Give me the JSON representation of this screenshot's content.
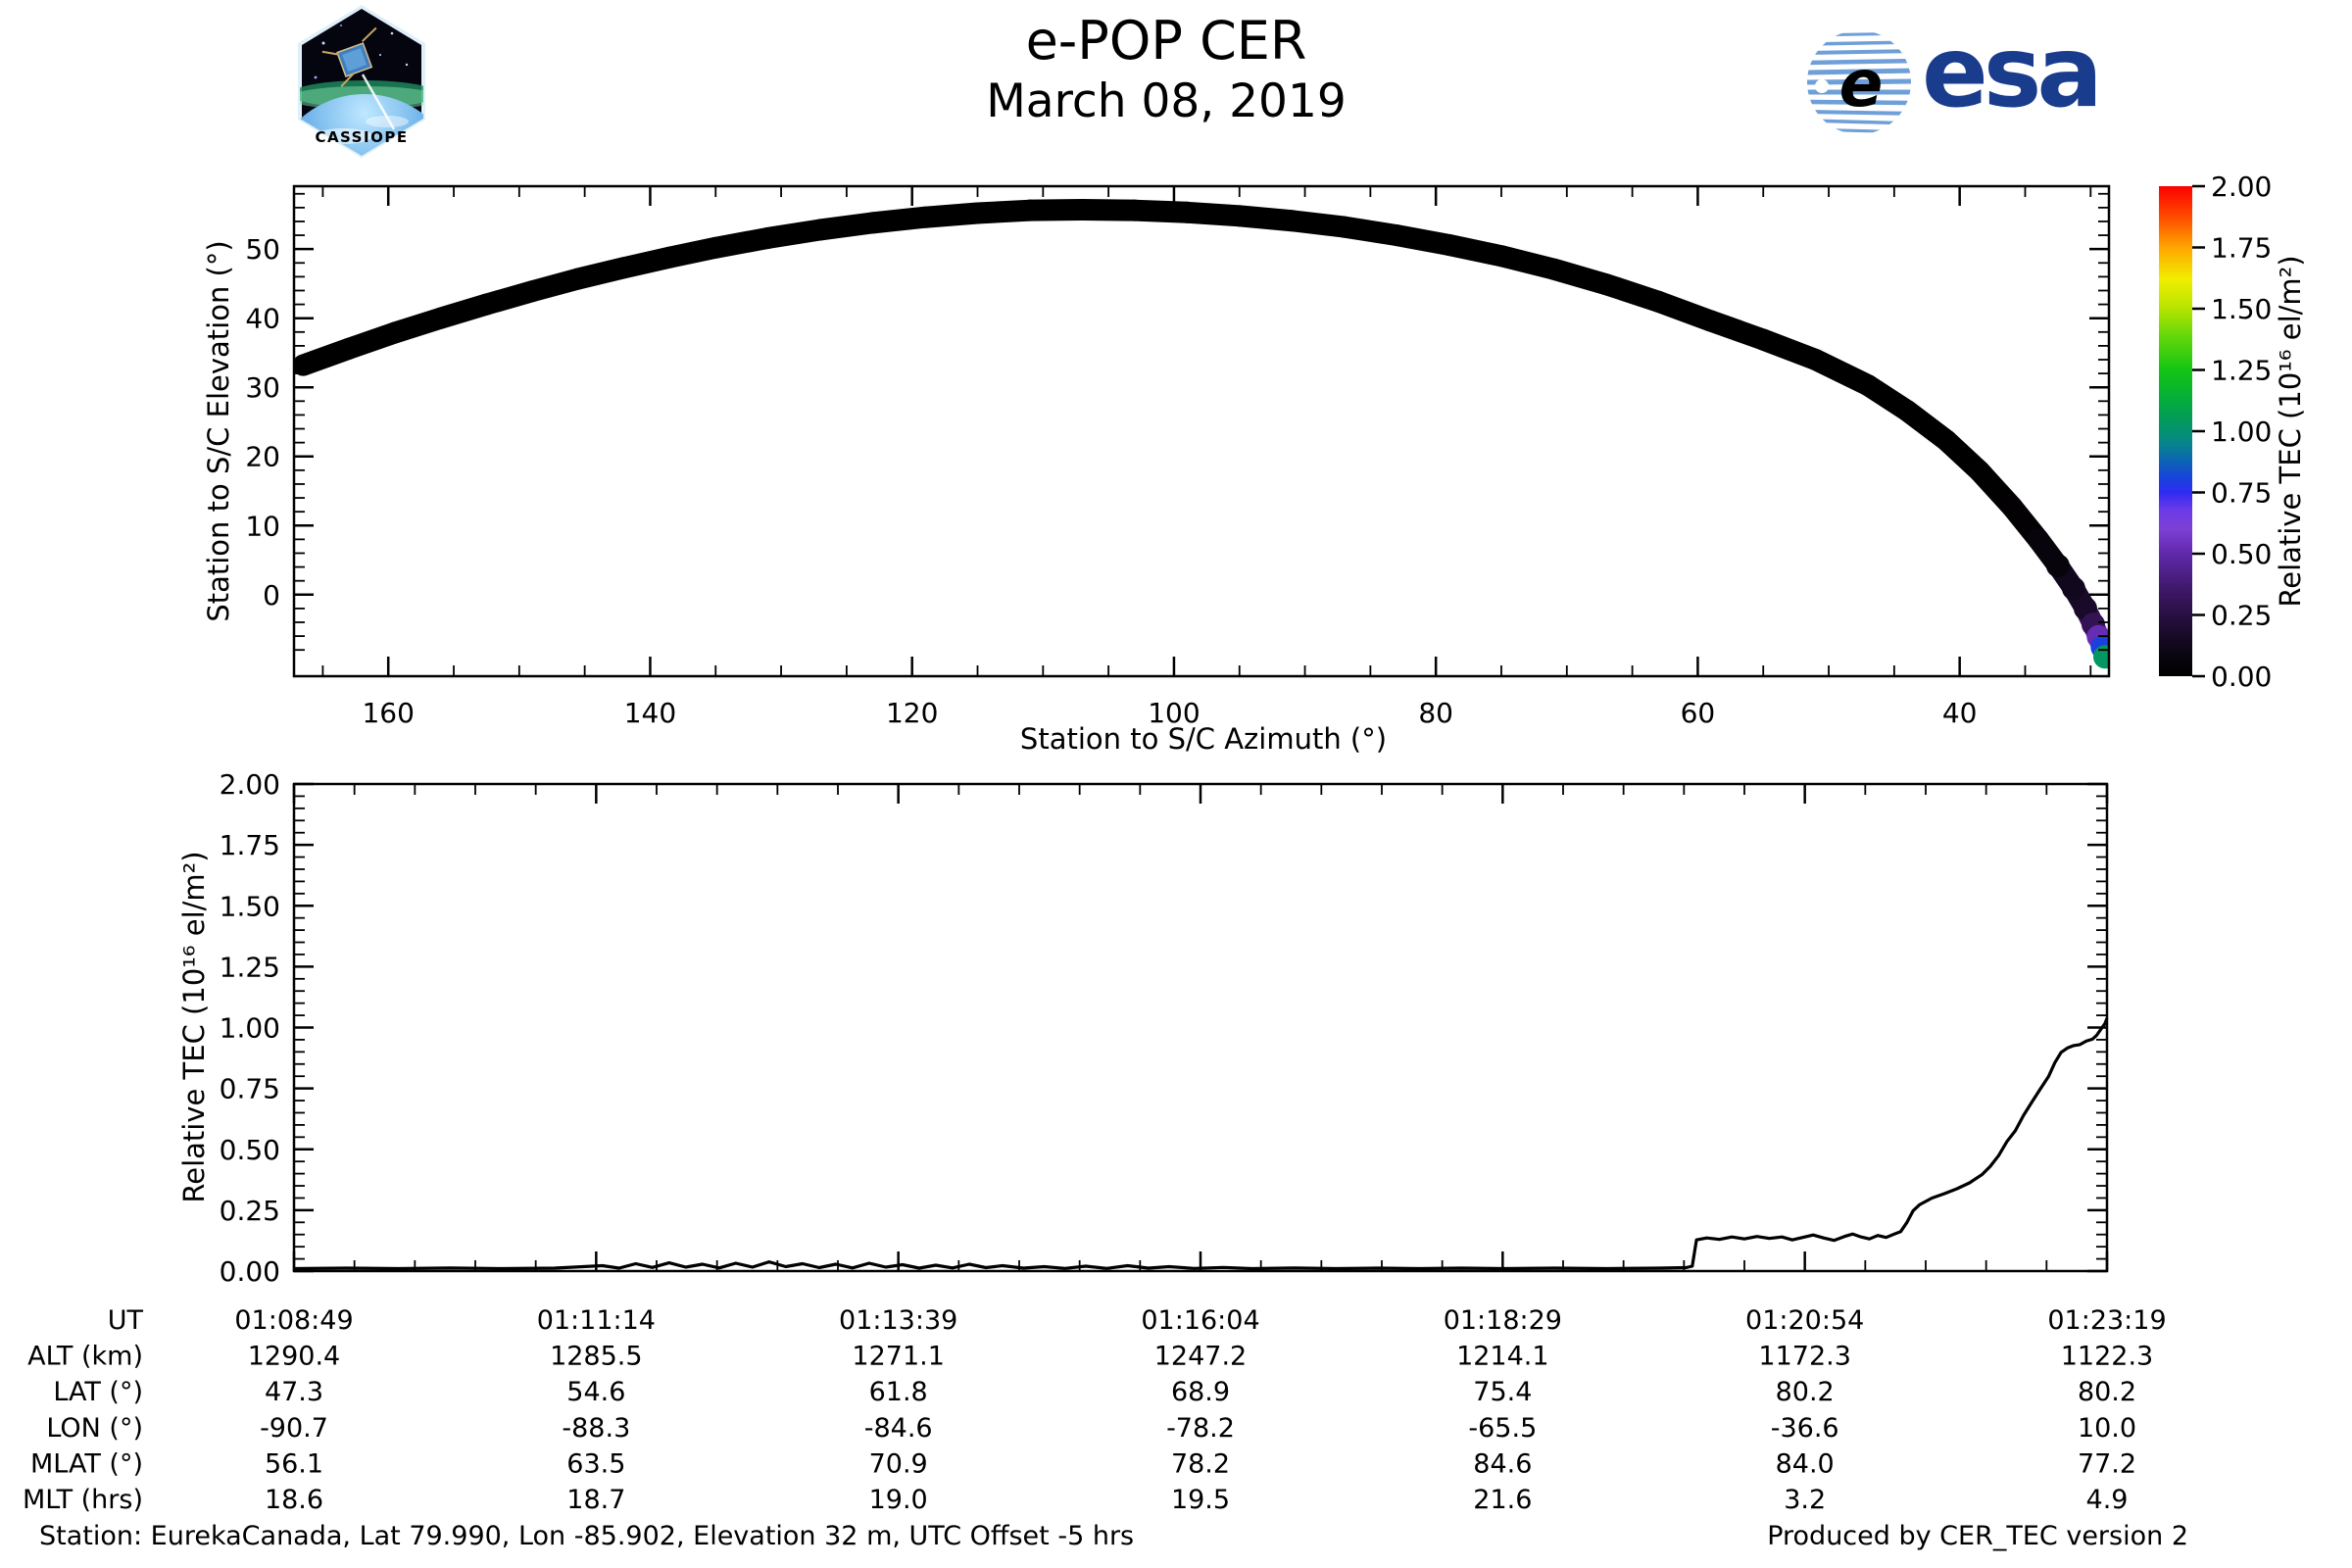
{
  "header": {
    "title": "e-POP CER",
    "subtitle": "March 08, 2019"
  },
  "logos": {
    "cassiope_label": "CASSIOPE",
    "esa_label": "esa"
  },
  "footer": {
    "left": "Station: EurekaCanada, Lat 79.990, Lon -85.902, Elevation 32 m, UTC Offset -5 hrs",
    "right": "Produced by CER_TEC version 2"
  },
  "colorbar": {
    "label": "Relative TEC (10¹⁶ el/m²)",
    "tick_values": [
      0,
      0.25,
      0.5,
      0.75,
      1.0,
      1.25,
      1.5,
      1.75,
      2.0
    ],
    "tick_labels": [
      "0.00",
      "0.25",
      "0.50",
      "0.75",
      "1.00",
      "1.25",
      "1.50",
      "1.75",
      "2.00"
    ],
    "lim": [
      0,
      2
    ],
    "colormap": [
      [
        0.0,
        "#000000"
      ],
      [
        0.1,
        "#0d0614"
      ],
      [
        0.2,
        "#1f0c33"
      ],
      [
        0.3,
        "#331353"
      ],
      [
        0.4,
        "#491d7e"
      ],
      [
        0.5,
        "#6029ab"
      ],
      [
        0.6,
        "#7e3fd4"
      ],
      [
        0.68,
        "#6b3ae8"
      ],
      [
        0.75,
        "#2f2bf2"
      ],
      [
        0.82,
        "#1448d6"
      ],
      [
        0.9,
        "#0a6fa8"
      ],
      [
        0.97,
        "#068b80"
      ],
      [
        1.05,
        "#029b58"
      ],
      [
        1.15,
        "#06b233"
      ],
      [
        1.25,
        "#14c514"
      ],
      [
        1.38,
        "#5ed60a"
      ],
      [
        1.5,
        "#b5e400"
      ],
      [
        1.62,
        "#f0ee00"
      ],
      [
        1.75,
        "#ffa600"
      ],
      [
        1.87,
        "#ff4e00"
      ],
      [
        2.0,
        "#fb0000"
      ]
    ]
  },
  "chart_data": [
    {
      "id": "elevation-vs-azimuth",
      "type": "scatter",
      "xlabel": "Station to S/C Azimuth (°)",
      "ylabel": "Station to S/C Elevation (°)",
      "xlim": [
        167.2,
        28.6
      ],
      "x_reversed": true,
      "ylim": [
        -11.8,
        59.1
      ],
      "xticks": [
        160,
        140,
        120,
        100,
        80,
        60,
        40
      ],
      "xtick_labels": [
        "160",
        "140",
        "120",
        "100",
        "80",
        "60",
        "40"
      ],
      "xminor_step": 5,
      "yticks": [
        0,
        10,
        20,
        30,
        40,
        50
      ],
      "ytick_labels": [
        "0",
        "10",
        "20",
        "30",
        "40",
        "50"
      ],
      "yminor_step": 2,
      "color_by": "relative_tec",
      "points": [
        [
          166.5,
          33.2,
          0
        ],
        [
          163,
          35.6,
          0
        ],
        [
          159.5,
          37.9,
          0
        ],
        [
          156,
          40.0,
          0
        ],
        [
          152.5,
          42.0,
          0
        ],
        [
          149,
          43.9,
          0
        ],
        [
          145.5,
          45.7,
          0
        ],
        [
          142,
          47.3,
          0
        ],
        [
          138.5,
          48.8,
          0
        ],
        [
          135,
          50.2,
          0
        ],
        [
          131,
          51.6,
          0
        ],
        [
          127,
          52.8,
          0
        ],
        [
          123,
          53.8,
          0
        ],
        [
          119,
          54.6,
          0
        ],
        [
          115,
          55.2,
          0
        ],
        [
          111,
          55.6,
          0
        ],
        [
          107,
          55.7,
          0
        ],
        [
          103,
          55.6,
          0
        ],
        [
          99,
          55.3,
          0
        ],
        [
          95,
          54.8,
          0
        ],
        [
          91,
          54.1,
          0
        ],
        [
          87,
          53.2,
          0
        ],
        [
          83,
          52.0,
          0
        ],
        [
          79,
          50.6,
          0
        ],
        [
          75,
          49.0,
          0
        ],
        [
          71,
          47.1,
          0
        ],
        [
          67,
          44.9,
          0
        ],
        [
          63,
          42.4,
          0
        ],
        [
          59,
          39.6,
          0
        ],
        [
          55,
          36.9,
          0
        ],
        [
          51,
          34.0,
          0
        ],
        [
          47,
          30.3,
          0
        ],
        [
          44,
          26.6,
          0
        ],
        [
          41,
          22.3,
          0
        ],
        [
          38.5,
          17.9,
          0
        ],
        [
          36,
          12.7,
          0.01
        ],
        [
          34,
          8.0,
          0.02
        ],
        [
          32.5,
          4.2,
          0.06
        ],
        [
          31.3,
          0.9,
          0.13
        ],
        [
          30.4,
          -2.0,
          0.17
        ],
        [
          29.8,
          -4.3,
          0.3
        ],
        [
          29.4,
          -6.1,
          0.52
        ],
        [
          29.1,
          -7.6,
          0.8
        ],
        [
          28.9,
          -9.0,
          1.03
        ]
      ]
    },
    {
      "id": "tec-vs-time",
      "type": "line",
      "ylabel": "Relative TEC (10¹⁶ el/m²)",
      "ylim": [
        0,
        2
      ],
      "yticks": [
        0,
        0.25,
        0.5,
        0.75,
        1.0,
        1.25,
        1.5,
        1.75,
        2.0
      ],
      "ytick_labels": [
        "0.00",
        "0.25",
        "0.50",
        "0.75",
        "1.00",
        "1.25",
        "1.50",
        "1.75",
        "2.00"
      ],
      "yminor_step": 0.05,
      "t_total": 870,
      "t_major_step": 145,
      "t_minor_step": 29,
      "x_axis_table": {
        "row_labels": [
          "UT",
          "ALT (km)",
          "LAT (°)",
          "LON (°)",
          "MLAT (°)",
          "MLT (hrs)"
        ],
        "columns": [
          {
            "t": 0,
            "values": [
              "01:08:49",
              "1290.4",
              "47.3",
              "-90.7",
              "56.1",
              "18.6"
            ]
          },
          {
            "t": 145,
            "values": [
              "01:11:14",
              "1285.5",
              "54.6",
              "-88.3",
              "63.5",
              "18.7"
            ]
          },
          {
            "t": 290,
            "values": [
              "01:13:39",
              "1271.1",
              "61.8",
              "-84.6",
              "70.9",
              "19.0"
            ]
          },
          {
            "t": 435,
            "values": [
              "01:16:04",
              "1247.2",
              "68.9",
              "-78.2",
              "78.2",
              "19.5"
            ]
          },
          {
            "t": 580,
            "values": [
              "01:18:29",
              "1214.1",
              "75.4",
              "-65.5",
              "84.6",
              "21.6"
            ]
          },
          {
            "t": 725,
            "values": [
              "01:20:54",
              "1172.3",
              "80.2",
              "-36.6",
              "84.0",
              "3.2"
            ]
          },
          {
            "t": 870,
            "values": [
              "01:23:19",
              "1122.3",
              "80.2",
              "10.0",
              "77.2",
              "4.9"
            ]
          }
        ]
      },
      "series": [
        [
          0,
          0.01
        ],
        [
          25,
          0.012
        ],
        [
          50,
          0.01
        ],
        [
          75,
          0.013
        ],
        [
          100,
          0.01
        ],
        [
          125,
          0.012
        ],
        [
          148,
          0.022
        ],
        [
          156,
          0.012
        ],
        [
          164,
          0.03
        ],
        [
          172,
          0.015
        ],
        [
          180,
          0.034
        ],
        [
          188,
          0.016
        ],
        [
          196,
          0.028
        ],
        [
          204,
          0.013
        ],
        [
          212,
          0.032
        ],
        [
          220,
          0.016
        ],
        [
          228,
          0.038
        ],
        [
          236,
          0.018
        ],
        [
          244,
          0.03
        ],
        [
          252,
          0.014
        ],
        [
          260,
          0.028
        ],
        [
          268,
          0.013
        ],
        [
          276,
          0.032
        ],
        [
          284,
          0.016
        ],
        [
          292,
          0.026
        ],
        [
          300,
          0.012
        ],
        [
          308,
          0.024
        ],
        [
          316,
          0.013
        ],
        [
          324,
          0.028
        ],
        [
          332,
          0.014
        ],
        [
          340,
          0.022
        ],
        [
          350,
          0.012
        ],
        [
          360,
          0.018
        ],
        [
          370,
          0.011
        ],
        [
          380,
          0.02
        ],
        [
          390,
          0.011
        ],
        [
          400,
          0.022
        ],
        [
          410,
          0.012
        ],
        [
          420,
          0.018
        ],
        [
          432,
          0.011
        ],
        [
          446,
          0.015
        ],
        [
          460,
          0.01
        ],
        [
          480,
          0.013
        ],
        [
          500,
          0.01
        ],
        [
          520,
          0.012
        ],
        [
          540,
          0.01
        ],
        [
          560,
          0.012
        ],
        [
          580,
          0.01
        ],
        [
          605,
          0.012
        ],
        [
          630,
          0.01
        ],
        [
          655,
          0.012
        ],
        [
          668,
          0.014
        ],
        [
          671,
          0.02
        ],
        [
          673,
          0.128
        ],
        [
          678,
          0.136
        ],
        [
          684,
          0.13
        ],
        [
          690,
          0.14
        ],
        [
          696,
          0.132
        ],
        [
          702,
          0.142
        ],
        [
          708,
          0.134
        ],
        [
          714,
          0.14
        ],
        [
          719,
          0.128
        ],
        [
          724,
          0.138
        ],
        [
          729,
          0.148
        ],
        [
          734,
          0.136
        ],
        [
          739,
          0.126
        ],
        [
          744,
          0.142
        ],
        [
          748,
          0.152
        ],
        [
          752,
          0.14
        ],
        [
          756,
          0.132
        ],
        [
          760,
          0.146
        ],
        [
          764,
          0.138
        ],
        [
          768,
          0.152
        ],
        [
          771,
          0.162
        ],
        [
          774,
          0.2
        ],
        [
          777,
          0.248
        ],
        [
          780,
          0.272
        ],
        [
          786,
          0.3
        ],
        [
          792,
          0.318
        ],
        [
          798,
          0.338
        ],
        [
          804,
          0.362
        ],
        [
          810,
          0.396
        ],
        [
          814,
          0.43
        ],
        [
          818,
          0.474
        ],
        [
          822,
          0.532
        ],
        [
          826,
          0.576
        ],
        [
          830,
          0.64
        ],
        [
          834,
          0.694
        ],
        [
          838,
          0.748
        ],
        [
          842,
          0.8
        ],
        [
          845,
          0.856
        ],
        [
          848,
          0.898
        ],
        [
          851,
          0.916
        ],
        [
          854,
          0.926
        ],
        [
          857,
          0.93
        ],
        [
          860,
          0.944
        ],
        [
          863,
          0.952
        ],
        [
          865,
          0.968
        ],
        [
          867,
          0.992
        ],
        [
          868,
          1.004
        ],
        [
          869,
          1.016
        ],
        [
          870,
          1.038
        ]
      ]
    }
  ]
}
